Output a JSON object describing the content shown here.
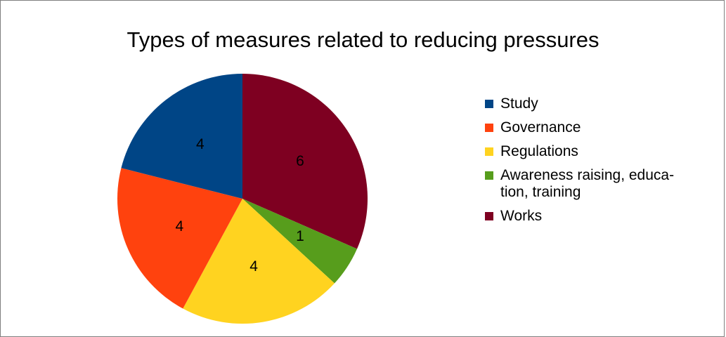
{
  "chart_data": {
    "type": "pie",
    "title": "Types of measures related to reducing pressures",
    "slices": [
      {
        "label": "Works",
        "value": 6,
        "color": "#7e0021"
      },
      {
        "label": "Awareness raising, educa-tion, training",
        "value": 1,
        "color": "#579d1c"
      },
      {
        "label": "Regulations",
        "value": 4,
        "color": "#ffd320"
      },
      {
        "label": "Governance",
        "value": 4,
        "color": "#ff420e"
      },
      {
        "label": "Study",
        "value": 4,
        "color": "#004586"
      }
    ],
    "legend": {
      "placement": "right",
      "items": [
        {
          "label": "Study",
          "color": "#004586"
        },
        {
          "label": "Governance",
          "color": "#ff420e"
        },
        {
          "label": "Regulations",
          "color": "#ffd320"
        },
        {
          "label": "Awareness raising, educa-tion, training",
          "color": "#579d1c"
        },
        {
          "label": "Works",
          "color": "#7e0021"
        }
      ]
    },
    "data_labels": "value"
  }
}
